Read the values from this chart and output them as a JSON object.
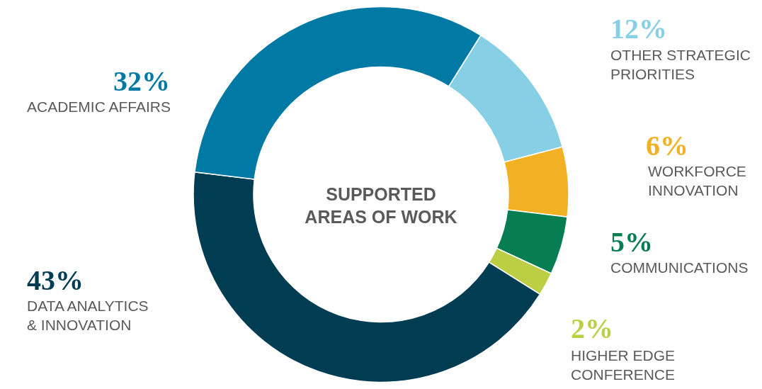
{
  "chart_data": {
    "type": "donut",
    "title": "SUPPORTED AREAS OF WORK",
    "categories": [
      "OTHER STRATEGIC PRIORITIES",
      "WORKFORCE INNOVATION",
      "COMMUNICATIONS",
      "HIGHER EDGE CONFERENCE",
      "DATA ANALYTICS & INNOVATION",
      "ACADEMIC AFFAIRS"
    ],
    "values": [
      12,
      6,
      5,
      2,
      43,
      32
    ],
    "colors": [
      "#87cfe5",
      "#f2b024",
      "#067d52",
      "#bccf44",
      "#003c52",
      "#0079a4"
    ],
    "value_labels": [
      "12%",
      "6%",
      "5%",
      "2%",
      "43%",
      "32%"
    ]
  }
}
